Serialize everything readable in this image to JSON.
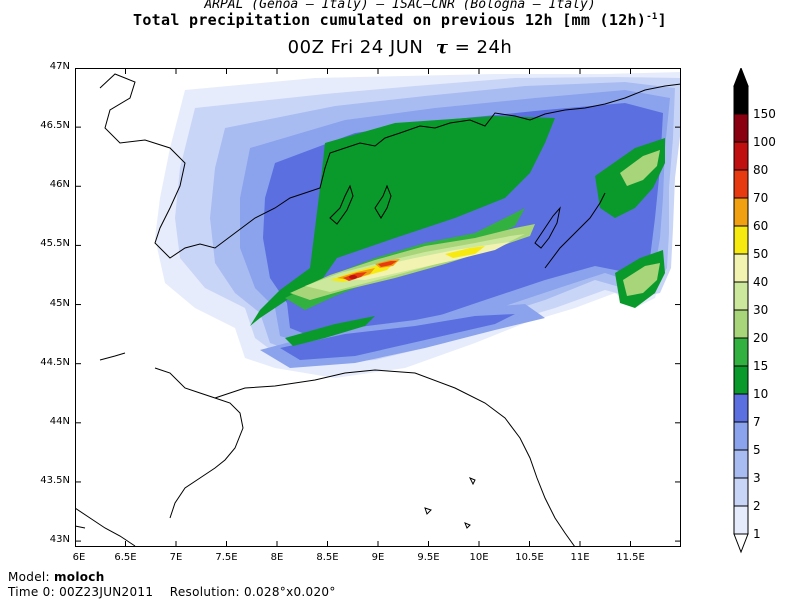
{
  "header": {
    "credits": "ARPAL (Genoa – Italy)  –  ISAC–CNR (Bologna – Italy)",
    "title": "Total precipitation cumulated on previous 12h [mm (12h)",
    "title_sup": "-1",
    "title_close": "]",
    "valid": "00Z Fri 24 JUN",
    "tau_symbol": "τ",
    "tau_value": "= 24h"
  },
  "map": {
    "lat_labels": [
      "47N",
      "46.5N",
      "46N",
      "45.5N",
      "45N",
      "44.5N",
      "44N",
      "43.5N",
      "43N"
    ],
    "lon_labels": [
      "6E",
      "6.5E",
      "7E",
      "7.5E",
      "8E",
      "8.5E",
      "9E",
      "9.5E",
      "10E",
      "10.5E",
      "11E",
      "11.5E"
    ],
    "lat_range": [
      42.95,
      47.0
    ],
    "lon_range": [
      6.0,
      12.0
    ]
  },
  "legend": {
    "levels": [
      "1",
      "2",
      "3",
      "5",
      "7",
      "10",
      "15",
      "20",
      "30",
      "40",
      "50",
      "60",
      "70",
      "80",
      "100",
      "150"
    ],
    "colors": [
      "#e6ecfb",
      "#c9d5f7",
      "#a9bcf2",
      "#8aa3ec",
      "#5b6fe0",
      "#0a9a2c",
      "#32b040",
      "#a8d47a",
      "#cce89c",
      "#f2f3b0",
      "#f6ea10",
      "#f0a010",
      "#e83a10",
      "#c01010",
      "#8a0010",
      "#000000"
    ]
  },
  "footer": {
    "model_label": "Model:",
    "model_value": "moloch",
    "time_label": "Time 0:",
    "time_value": "00Z23JUN2011",
    "res_label": "Resolution:",
    "res_value": "0.028°x0.020°"
  }
}
